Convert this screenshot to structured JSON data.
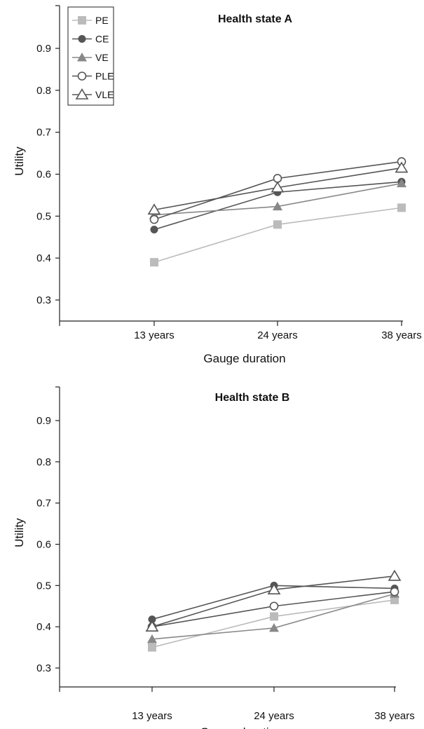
{
  "chart_data": [
    {
      "type": "line",
      "title": "Health state A",
      "xlabel": "Gauge duration",
      "ylabel": "Utility",
      "categories": [
        "13 years",
        "24 years",
        "38 years"
      ],
      "yticks": [
        "0.3",
        "0.4",
        "0.5",
        "0.6",
        "0.7",
        "0.8",
        "0.9"
      ],
      "ylim": [
        0.25,
        1.0
      ],
      "grid": false,
      "legend": "top-left",
      "series": [
        {
          "name": "PE",
          "marker": "square-filled",
          "color": "#bbbbbb",
          "values": [
            0.39,
            0.48,
            0.52
          ]
        },
        {
          "name": "CE",
          "marker": "circle-filled",
          "color": "#555555",
          "values": [
            0.468,
            0.557,
            0.582
          ]
        },
        {
          "name": "VE",
          "marker": "triangle-filled",
          "color": "#888888",
          "values": [
            0.503,
            0.523,
            0.578
          ]
        },
        {
          "name": "PLE",
          "marker": "circle-open",
          "color": "#555555",
          "values": [
            0.492,
            0.59,
            0.63
          ]
        },
        {
          "name": "VLE",
          "marker": "triangle-open",
          "color": "#555555",
          "values": [
            0.515,
            0.568,
            0.615
          ]
        }
      ]
    },
    {
      "type": "line",
      "title": "Health state B",
      "xlabel": "Gauge duration",
      "ylabel": "Utility",
      "categories": [
        "13 years",
        "24 years",
        "38 years"
      ],
      "yticks": [
        "0.3",
        "0.4",
        "0.5",
        "0.6",
        "0.7",
        "0.8",
        "0.9"
      ],
      "ylim": [
        0.25,
        1.0
      ],
      "grid": false,
      "series": [
        {
          "name": "PE",
          "marker": "square-filled",
          "color": "#bbbbbb",
          "values": [
            0.35,
            0.425,
            0.465
          ]
        },
        {
          "name": "CE",
          "marker": "circle-filled",
          "color": "#555555",
          "values": [
            0.418,
            0.5,
            0.493
          ]
        },
        {
          "name": "VE",
          "marker": "triangle-filled",
          "color": "#888888",
          "values": [
            0.37,
            0.397,
            0.48
          ]
        },
        {
          "name": "PLE",
          "marker": "circle-open",
          "color": "#555555",
          "values": [
            0.4,
            0.45,
            0.485
          ]
        },
        {
          "name": "VLE",
          "marker": "triangle-open",
          "color": "#555555",
          "values": [
            0.4,
            0.49,
            0.523
          ]
        }
      ]
    }
  ]
}
